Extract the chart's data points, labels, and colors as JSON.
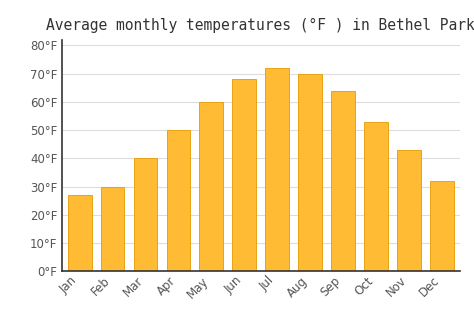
{
  "title": "Average monthly temperatures (°F ) in Bethel Park",
  "months": [
    "Jan",
    "Feb",
    "Mar",
    "Apr",
    "May",
    "Jun",
    "Jul",
    "Aug",
    "Sep",
    "Oct",
    "Nov",
    "Dec"
  ],
  "values": [
    27,
    30,
    40,
    50,
    60,
    68,
    72,
    70,
    64,
    53,
    43,
    32
  ],
  "bar_color": "#FFBB33",
  "bar_edge_color": "#E89A00",
  "background_color": "#FFFFFF",
  "grid_color": "#DDDDDD",
  "ylim": [
    0,
    82
  ],
  "yticks": [
    0,
    10,
    20,
    30,
    40,
    50,
    60,
    70,
    80
  ],
  "ylabel_suffix": "°F",
  "title_fontsize": 10.5,
  "tick_fontsize": 8.5,
  "bar_width": 0.72
}
